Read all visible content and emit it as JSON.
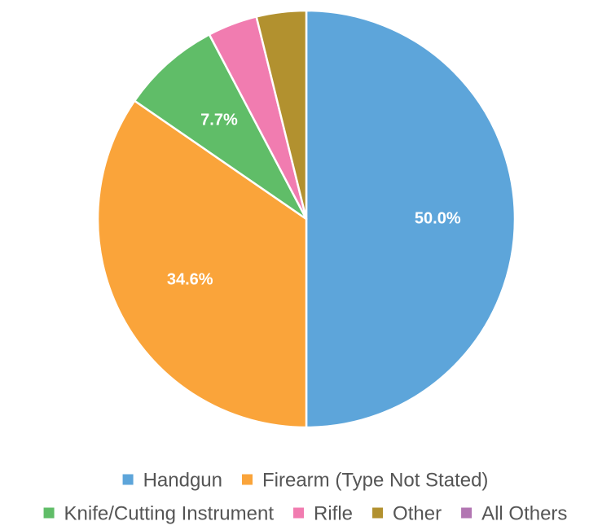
{
  "chart_data": {
    "type": "pie",
    "title": "",
    "slices": [
      {
        "label": "Handgun",
        "value": 50.0,
        "display": "50.0%",
        "color": "#5DA5DA"
      },
      {
        "label": "Firearm (Type Not Stated)",
        "value": 34.6,
        "display": "34.6%",
        "color": "#FAA43A"
      },
      {
        "label": "Knife/Cutting Instrument",
        "value": 7.7,
        "display": "7.7%",
        "color": "#60BD68"
      },
      {
        "label": "Rifle",
        "value": 3.85,
        "display": "",
        "color": "#F17CB0"
      },
      {
        "label": "Other",
        "value": 3.85,
        "display": "",
        "color": "#B2912F"
      },
      {
        "label": "All Others",
        "value": 0.0,
        "display": "",
        "color": "#B276B2"
      }
    ],
    "legend_position": "bottom"
  }
}
